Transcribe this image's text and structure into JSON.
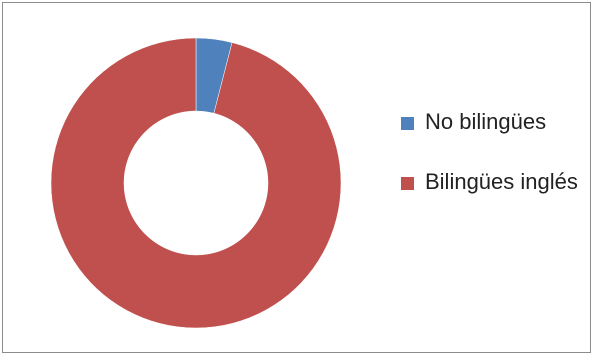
{
  "chart_data": {
    "type": "pie",
    "donut": true,
    "categories": [
      "No bilingües",
      "Bilingües inglés"
    ],
    "values": [
      4,
      96
    ],
    "colors": [
      "#4f81bd",
      "#c0504d"
    ],
    "legend": [
      {
        "label": "No bilingües",
        "color": "#4f81bd"
      },
      {
        "label": "Bilingües inglés",
        "color": "#c0504d"
      }
    ],
    "legend_position": "right",
    "title": ""
  }
}
